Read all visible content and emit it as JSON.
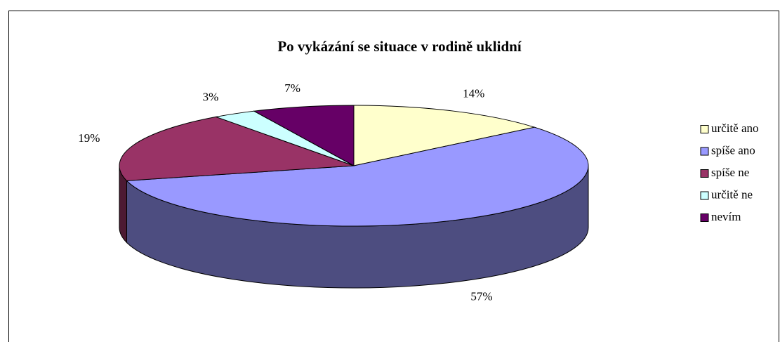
{
  "chart_data": {
    "type": "pie3d",
    "title": "Po vykázání se situace v rodině uklidní",
    "categories": [
      "určitě ano",
      "spíše ano",
      "spíše ne",
      "určitě ne",
      "nevím"
    ],
    "values": [
      14,
      57,
      19,
      3,
      7
    ],
    "value_labels": [
      "14%",
      "57%",
      "19%",
      "3%",
      "7%"
    ],
    "colors": [
      "#FFFFCC",
      "#9999FF",
      "#993366",
      "#CCFFFF",
      "#660066"
    ],
    "legend": "right"
  }
}
